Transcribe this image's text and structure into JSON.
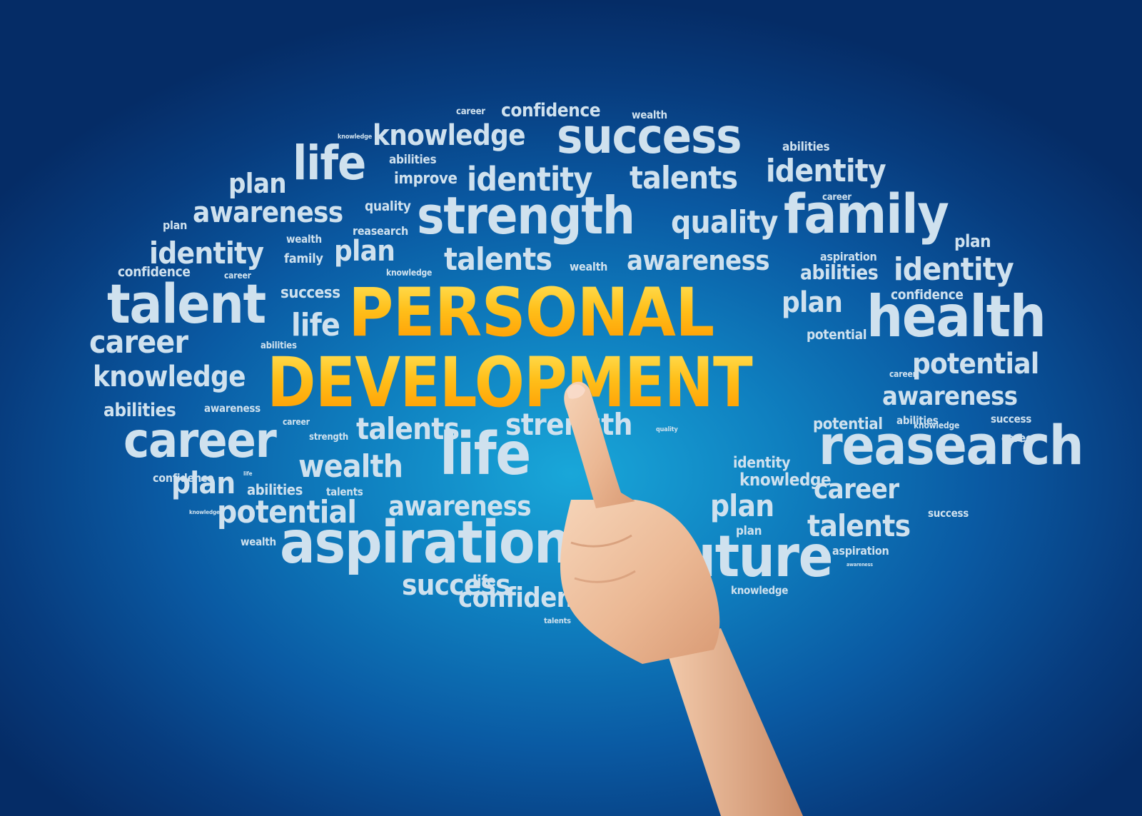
{
  "headline": {
    "line1": "PERSONAL",
    "line2": "DEVELOPMENT"
  },
  "colors": {
    "headline_top": "#ffdd44",
    "headline_bottom": "#ff9a00",
    "words": "#cfe1ee",
    "background": "#0a5aa3"
  },
  "hand": "pointing-hand-icon",
  "words": [
    {
      "t": "career"
    },
    {
      "t": "confidence"
    },
    {
      "t": "wealth"
    },
    {
      "t": "knowledge"
    },
    {
      "t": "knowledge"
    },
    {
      "t": "success"
    },
    {
      "t": "abilities"
    },
    {
      "t": "life"
    },
    {
      "t": "abilities"
    },
    {
      "t": "plan"
    },
    {
      "t": "improve"
    },
    {
      "t": "identity"
    },
    {
      "t": "talents"
    },
    {
      "t": "identity"
    },
    {
      "t": "career"
    },
    {
      "t": "awareness"
    },
    {
      "t": "quality"
    },
    {
      "t": "strength"
    },
    {
      "t": "quality"
    },
    {
      "t": "family"
    },
    {
      "t": "plan"
    },
    {
      "t": "wealth"
    },
    {
      "t": "reasearch"
    },
    {
      "t": "plan"
    },
    {
      "t": "identity"
    },
    {
      "t": "family"
    },
    {
      "t": "plan"
    },
    {
      "t": "talents"
    },
    {
      "t": "awareness"
    },
    {
      "t": "aspiration"
    },
    {
      "t": "confidence"
    },
    {
      "t": "career"
    },
    {
      "t": "knowledge"
    },
    {
      "t": "wealth"
    },
    {
      "t": "abilities"
    },
    {
      "t": "identity"
    },
    {
      "t": "success"
    },
    {
      "t": "talent"
    },
    {
      "t": "confidence"
    },
    {
      "t": "plan"
    },
    {
      "t": "life"
    },
    {
      "t": "health"
    },
    {
      "t": "potential"
    },
    {
      "t": "career"
    },
    {
      "t": "abilities"
    },
    {
      "t": "potential"
    },
    {
      "t": "knowledge"
    },
    {
      "t": "career"
    },
    {
      "t": "awareness"
    },
    {
      "t": "abilities"
    },
    {
      "t": "awareness"
    },
    {
      "t": "career"
    },
    {
      "t": "talents"
    },
    {
      "t": "potential"
    },
    {
      "t": "knowledge"
    },
    {
      "t": "abilities"
    },
    {
      "t": "success"
    },
    {
      "t": "career"
    },
    {
      "t": "strength"
    },
    {
      "t": "career"
    },
    {
      "t": "quality"
    },
    {
      "t": "life"
    },
    {
      "t": "reasearch"
    },
    {
      "t": "wealth"
    },
    {
      "t": "identity"
    },
    {
      "t": "confidence"
    },
    {
      "t": "life"
    },
    {
      "t": "knowledge"
    },
    {
      "t": "career"
    },
    {
      "t": "plan"
    },
    {
      "t": "abilities"
    },
    {
      "t": "talents"
    },
    {
      "t": "knowledge"
    },
    {
      "t": "success"
    },
    {
      "t": "potential"
    },
    {
      "t": "awareness"
    },
    {
      "t": "plan"
    },
    {
      "t": "plan"
    },
    {
      "t": "wealth"
    },
    {
      "t": "aspiration"
    },
    {
      "t": "talents"
    },
    {
      "t": "aspiration"
    },
    {
      "t": "awareness"
    },
    {
      "t": "future"
    },
    {
      "t": "success"
    },
    {
      "t": "life"
    },
    {
      "t": "confidence"
    },
    {
      "t": "knowledge"
    },
    {
      "t": "talents"
    },
    {
      "t": "strength"
    }
  ]
}
